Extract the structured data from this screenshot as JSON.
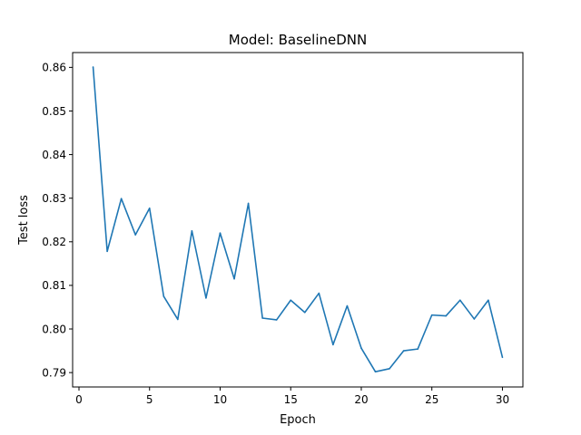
{
  "chart_data": {
    "type": "line",
    "title": "Model: BaselineDNN",
    "xlabel": "Epoch",
    "ylabel": "Test loss",
    "xlim": [
      -0.45,
      31.45
    ],
    "ylim": [
      0.7867,
      0.8634
    ],
    "xticks": [
      0,
      5,
      10,
      15,
      20,
      25,
      30
    ],
    "xtick_labels": [
      "0",
      "5",
      "10",
      "15",
      "20",
      "25",
      "30"
    ],
    "yticks": [
      0.79,
      0.8,
      0.81,
      0.82,
      0.83,
      0.84,
      0.85,
      0.86
    ],
    "ytick_labels": [
      "0.79",
      "0.80",
      "0.81",
      "0.82",
      "0.83",
      "0.84",
      "0.85",
      "0.86"
    ],
    "grid": false,
    "legend": "none",
    "series": [
      {
        "color": "#1f77b4",
        "x": [
          1,
          2,
          3,
          4,
          5,
          6,
          7,
          8,
          9,
          10,
          11,
          12,
          13,
          14,
          15,
          16,
          17,
          18,
          19,
          20,
          21,
          22,
          23,
          24,
          25,
          26,
          27,
          28,
          29,
          30
        ],
        "y": [
          0.8601,
          0.8178,
          0.8299,
          0.8216,
          0.8277,
          0.8075,
          0.8022,
          0.8225,
          0.8071,
          0.822,
          0.8115,
          0.8288,
          0.8025,
          0.8021,
          0.8066,
          0.8038,
          0.8082,
          0.7964,
          0.8053,
          0.7956,
          0.7902,
          0.7909,
          0.795,
          0.7954,
          0.8032,
          0.803,
          0.8066,
          0.8023,
          0.8066,
          0.7935
        ]
      }
    ]
  }
}
